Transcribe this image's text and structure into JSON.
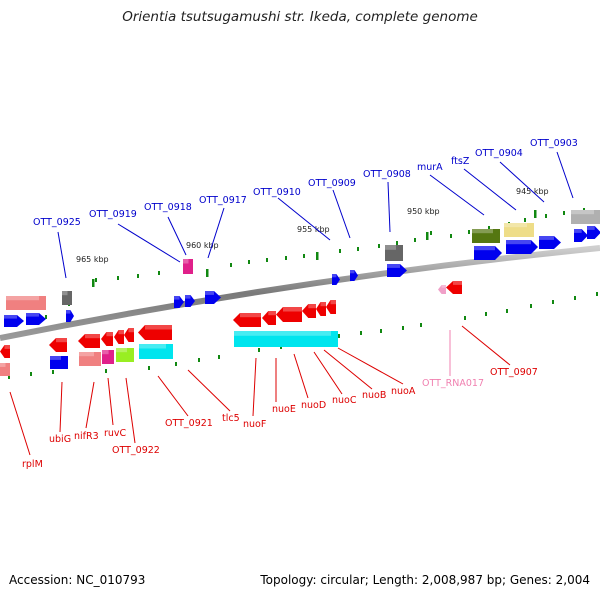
{
  "title": "Orientia tsutsugamushi str. Ikeda, complete genome",
  "footer": {
    "accession": "Accession: NC_010793",
    "summary": "Topology: circular; Length: 2,008,987 bp; Genes: 2,004"
  },
  "colors": {
    "top_label": "#0000cc",
    "bottom_label": "#dd0000",
    "rna_label": "#f080b0",
    "backbone": "#808080",
    "gene_blue": "#0000ee",
    "gene_red": "#ee0000",
    "gene_cyan": "#00e5ee",
    "gene_pink": "#f08080",
    "gene_magenta": "#e0208a",
    "gene_lime": "#99ee22",
    "gene_olive": "#557711",
    "gene_khaki": "#eedd88",
    "gene_gray": "#666666",
    "tick_green": "#118811"
  },
  "ticks": [
    "965 kbp",
    "960 kbp",
    "955 kbp",
    "950 kbp",
    "945 kbp"
  ],
  "top_labels": [
    "OTT_0925",
    "OTT_0919",
    "OTT_0918",
    "OTT_0917",
    "OTT_0910",
    "OTT_0909",
    "OTT_0908",
    "murA",
    "ftsZ",
    "OTT_0904",
    "OTT_0903"
  ],
  "bottom_labels": [
    "rplM",
    "ubiG",
    "nifR3",
    "ruvC",
    "OTT_0922",
    "OTT_0921",
    "tlc5",
    "nuoF",
    "nuoE",
    "nuoD",
    "nuoC",
    "nuoB",
    "nuoA",
    "OTT_RNA017",
    "OTT_0907"
  ]
}
